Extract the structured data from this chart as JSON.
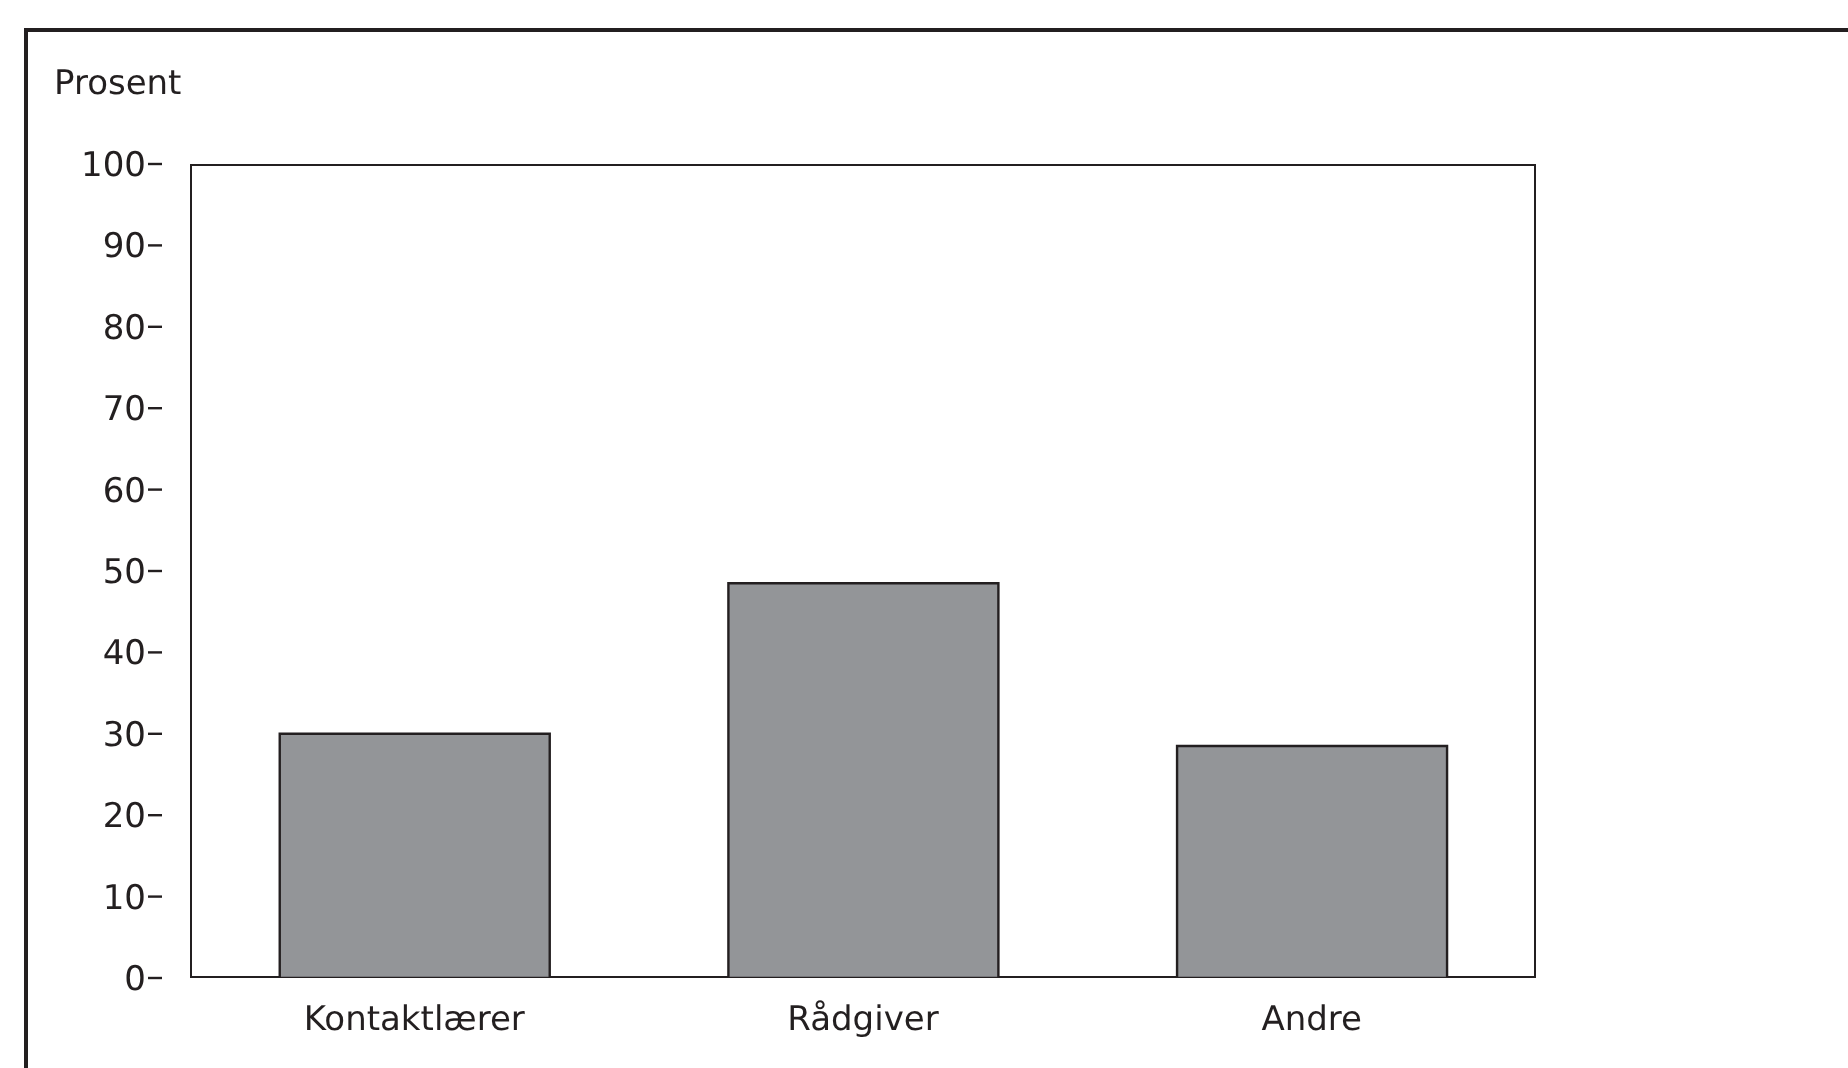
{
  "chart_data": {
    "type": "bar",
    "ylabel": "Prosent",
    "categories": [
      "Kontaktlærer",
      "Rådgiver",
      "Andre"
    ],
    "values": [
      30,
      48.5,
      28.5
    ],
    "color": "#939598",
    "ylim": [
      0,
      100
    ],
    "yticks": [
      0,
      10,
      20,
      30,
      40,
      50,
      60,
      70,
      80,
      90,
      100
    ],
    "grid": false,
    "legend": false
  }
}
